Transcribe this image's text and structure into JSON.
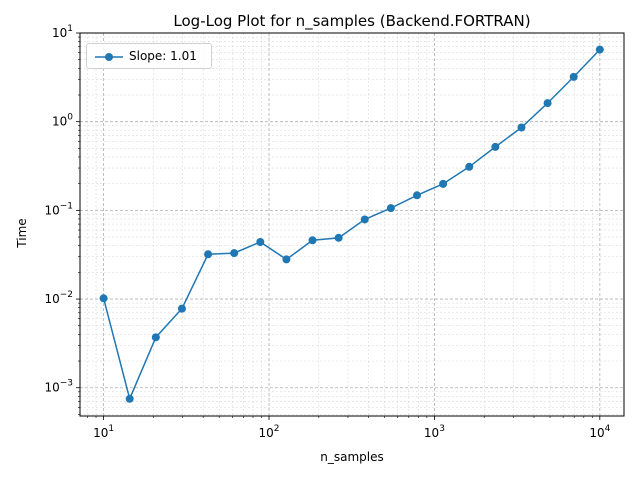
{
  "title": "Log-Log Plot for n_samples (Backend.FORTRAN)",
  "chart_data": {
    "type": "line",
    "title": "Log-Log Plot for n_samples (Backend.FORTRAN)",
    "xlabel": "n_samples",
    "ylabel": "Time",
    "xscale": "log",
    "yscale": "log",
    "xlim": [
      7.2,
      14000
    ],
    "ylim": [
      0.00048,
      10
    ],
    "grid": true,
    "legend_position": "top-left",
    "x_ticks": [
      {
        "base": "10",
        "exp": "1"
      },
      {
        "base": "10",
        "exp": "2"
      },
      {
        "base": "10",
        "exp": "3"
      },
      {
        "base": "10",
        "exp": "4"
      }
    ],
    "y_ticks": [
      {
        "base": "10",
        "exp": "−3"
      },
      {
        "base": "10",
        "exp": "−2"
      },
      {
        "base": "10",
        "exp": "−1"
      },
      {
        "base": "10",
        "exp": "0"
      },
      {
        "base": "10",
        "exp": "1"
      }
    ],
    "series": [
      {
        "name": "Slope: 1.01",
        "color": "#1f77b4",
        "marker": "circle",
        "x": [
          10,
          14.38,
          20.69,
          29.76,
          42.81,
          61.58,
          88.59,
          127.43,
          183.3,
          263.67,
          379.27,
          545.56,
          784.76,
          1128.84,
          1623.78,
          2335.72,
          3359.82,
          4832.93,
          6951.93,
          10000
        ],
        "y": [
          0.0102,
          0.00075,
          0.0037,
          0.0078,
          0.032,
          0.033,
          0.044,
          0.028,
          0.046,
          0.049,
          0.079,
          0.106,
          0.148,
          0.199,
          0.31,
          0.52,
          0.86,
          1.62,
          3.2,
          6.5
        ]
      }
    ]
  }
}
